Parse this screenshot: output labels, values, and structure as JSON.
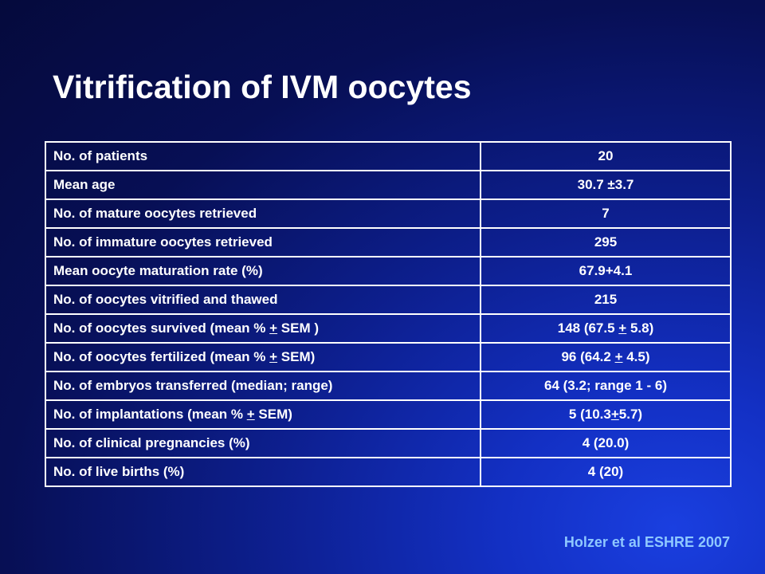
{
  "slide": {
    "title": "Vitrification of IVM oocytes",
    "citation": "Holzer et al ESHRE  2007"
  },
  "table": {
    "rows": [
      {
        "label": "No. of patients",
        "value": "20"
      },
      {
        "label": "Mean age",
        "value": "30.7 ±3.7"
      },
      {
        "label": "No. of mature oocytes retrieved",
        "value": "7"
      },
      {
        "label": "No. of immature oocytes retrieved",
        "value": "295"
      },
      {
        "label": "Mean oocyte maturation rate (%)",
        "value": "67.9+4.1"
      },
      {
        "label": "No. of oocytes vitrified and thawed",
        "value": "215"
      },
      {
        "label": "No. of oocytes survived (mean % + SEM )",
        "value": "148  (67.5 + 5.8)"
      },
      {
        "label": "No. of oocytes fertilized (mean % + SEM)",
        "value": "96 (64.2 + 4.5)"
      },
      {
        "label": "No. of embryos transferred (median; range)",
        "value": "64 (3.2; range 1 - 6)"
      },
      {
        "label": "No. of implantations (mean % + SEM)",
        "value": "5 (10.3+5.7)"
      },
      {
        "label": "No. of clinical pregnancies (%)",
        "value": "4 (20.0)"
      },
      {
        "label": "No. of live births (%)",
        "value": "4 (20)"
      }
    ]
  }
}
